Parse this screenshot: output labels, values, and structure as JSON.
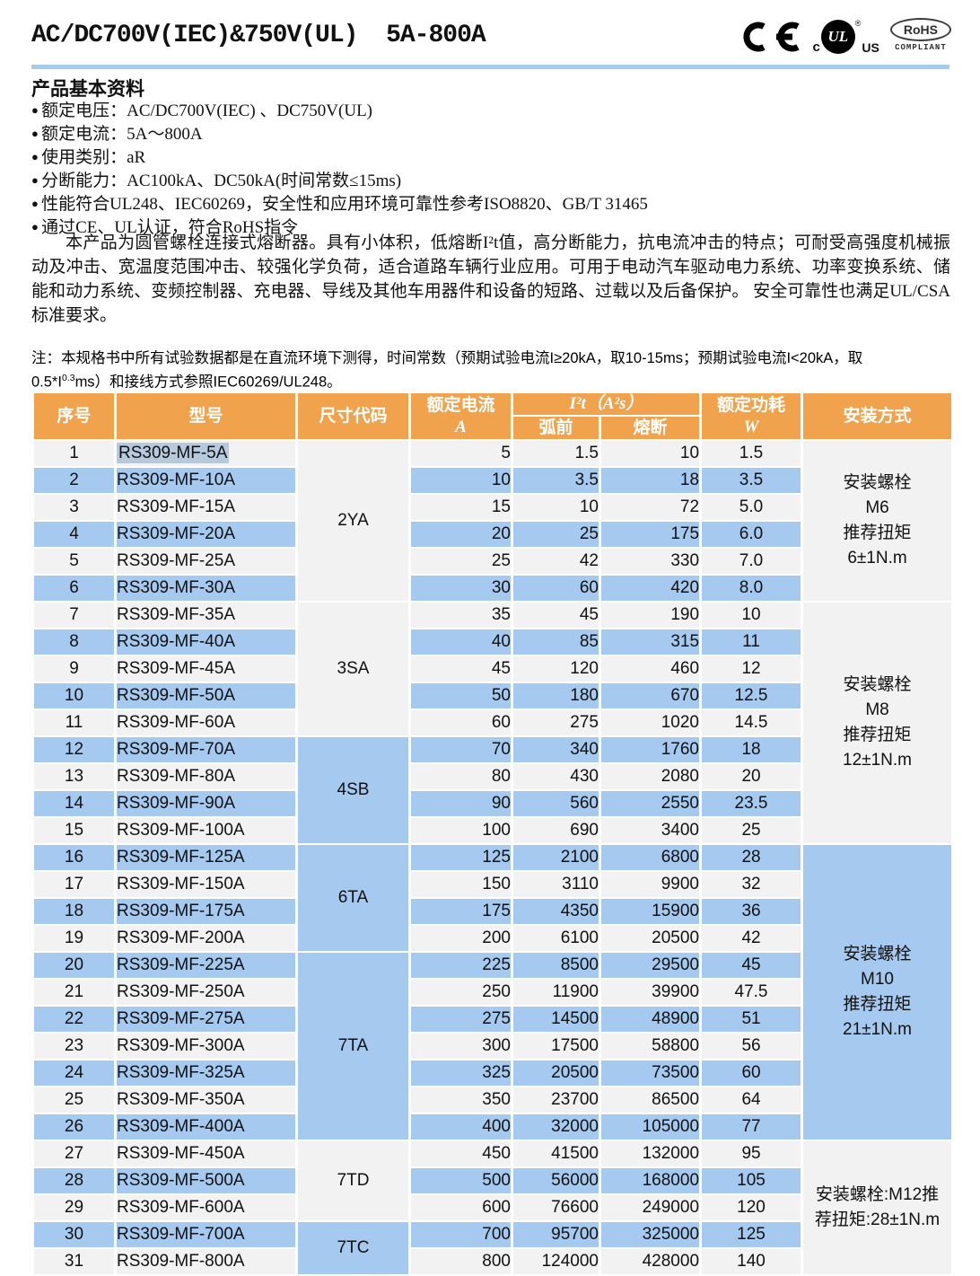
{
  "colors": {
    "header_orange": "#f0a24c",
    "row_blue": "#a6c9ef",
    "row_gray": "#f2f2f2",
    "divider_blue": "#a9cbea",
    "selection_blue": "#b7c9dd",
    "header_text": "#ffffff"
  },
  "header": {
    "title": "AC/DC700V(IEC)&750V(UL)  5A-800A"
  },
  "logos": {
    "ul_c": "c",
    "ul_text": "UL",
    "ul_reg": "®",
    "ul_us": "US",
    "rohs": "RoHS",
    "rohs_compliant": "COMPLIANT"
  },
  "basic_info": {
    "heading": "产品基本资料",
    "bullets": [
      "额定电压：AC/DC700V(IEC) 、DC750V(UL)",
      "额定电流：5A～800A",
      "使用类别：aR",
      "分断能力：AC100kA、DC50kA(时间常数≤15ms)",
      "性能符合UL248、IEC60269，安全性和应用环境可靠性参考ISO8820、GB/T 31465",
      "通过CE、UL认证，符合RoHS指令"
    ],
    "paragraph": "本产品为圆管螺栓连接式熔断器。具有小体积，低熔断I²t值，高分断能力，抗电流冲击的特点；可耐受高强度机械振动及冲击、宽温度范围冲击、较强化学负荷，适合道路车辆行业应用。可用于电动汽车驱动电力系统、功率变换系统、储能和动力系统、变频控制器、充电器、导线及其他车用器件和设备的短路、过载以及后备保护。 安全可靠性也满足UL/CSA标准要求。"
  },
  "note": {
    "line1": "注：本规格书中所有试验数据都是在直流环境下测得，时间常数（预期试验电流I≥20kA，取10-15ms；预期试验电流I<20kA，取",
    "line2_prefix": "0.5*I",
    "line2_sup": "0.3",
    "line2_suffix": "ms）和接线方式参照IEC60269/UL248。"
  },
  "table": {
    "headers": {
      "seq": "序号",
      "model": "型号",
      "size_code": "尺寸代码",
      "rated_current_l1": "额定电流",
      "rated_current_l2": "A",
      "i2t": "I²t（A²s）",
      "pre_arc": "弧前",
      "melt": "熔断",
      "power_l1": "额定功耗",
      "power_l2": "W",
      "mounting": "安装方式"
    },
    "highlight_row": 1,
    "rows": [
      {
        "seq": 1,
        "model": "RS309-MF-5A",
        "current": "5",
        "pre_arc": "1.5",
        "melt": "10",
        "power": "1.5"
      },
      {
        "seq": 2,
        "model": "RS309-MF-10A",
        "current": "10",
        "pre_arc": "3.5",
        "melt": "18",
        "power": "3.5"
      },
      {
        "seq": 3,
        "model": "RS309-MF-15A",
        "current": "15",
        "pre_arc": "10",
        "melt": "72",
        "power": "5.0"
      },
      {
        "seq": 4,
        "model": "RS309-MF-20A",
        "current": "20",
        "pre_arc": "25",
        "melt": "175",
        "power": "6.0"
      },
      {
        "seq": 5,
        "model": "RS309-MF-25A",
        "current": "25",
        "pre_arc": "42",
        "melt": "330",
        "power": "7.0"
      },
      {
        "seq": 6,
        "model": "RS309-MF-30A",
        "current": "30",
        "pre_arc": "60",
        "melt": "420",
        "power": "8.0"
      },
      {
        "seq": 7,
        "model": "RS309-MF-35A",
        "current": "35",
        "pre_arc": "45",
        "melt": "190",
        "power": "10"
      },
      {
        "seq": 8,
        "model": "RS309-MF-40A",
        "current": "40",
        "pre_arc": "85",
        "melt": "315",
        "power": "11"
      },
      {
        "seq": 9,
        "model": "RS309-MF-45A",
        "current": "45",
        "pre_arc": "120",
        "melt": "460",
        "power": "12"
      },
      {
        "seq": 10,
        "model": "RS309-MF-50A",
        "current": "50",
        "pre_arc": "180",
        "melt": "670",
        "power": "12.5"
      },
      {
        "seq": 11,
        "model": "RS309-MF-60A",
        "current": "60",
        "pre_arc": "275",
        "melt": "1020",
        "power": "14.5"
      },
      {
        "seq": 12,
        "model": "RS309-MF-70A",
        "current": "70",
        "pre_arc": "340",
        "melt": "1760",
        "power": "18"
      },
      {
        "seq": 13,
        "model": "RS309-MF-80A",
        "current": "80",
        "pre_arc": "430",
        "melt": "2080",
        "power": "20"
      },
      {
        "seq": 14,
        "model": "RS309-MF-90A",
        "current": "90",
        "pre_arc": "560",
        "melt": "2550",
        "power": "23.5"
      },
      {
        "seq": 15,
        "model": "RS309-MF-100A",
        "current": "100",
        "pre_arc": "690",
        "melt": "3400",
        "power": "25"
      },
      {
        "seq": 16,
        "model": "RS309-MF-125A",
        "current": "125",
        "pre_arc": "2100",
        "melt": "6800",
        "power": "28"
      },
      {
        "seq": 17,
        "model": "RS309-MF-150A",
        "current": "150",
        "pre_arc": "3110",
        "melt": "9900",
        "power": "32"
      },
      {
        "seq": 18,
        "model": "RS309-MF-175A",
        "current": "175",
        "pre_arc": "4350",
        "melt": "15900",
        "power": "36"
      },
      {
        "seq": 19,
        "model": "RS309-MF-200A",
        "current": "200",
        "pre_arc": "6100",
        "melt": "20500",
        "power": "42"
      },
      {
        "seq": 20,
        "model": "RS309-MF-225A",
        "current": "225",
        "pre_arc": "8500",
        "melt": "29500",
        "power": "45"
      },
      {
        "seq": 21,
        "model": "RS309-MF-250A",
        "current": "250",
        "pre_arc": "11900",
        "melt": "39900",
        "power": "47.5"
      },
      {
        "seq": 22,
        "model": "RS309-MF-275A",
        "current": "275",
        "pre_arc": "14500",
        "melt": "48900",
        "power": "51"
      },
      {
        "seq": 23,
        "model": "RS309-MF-300A",
        "current": "300",
        "pre_arc": "17500",
        "melt": "58800",
        "power": "56"
      },
      {
        "seq": 24,
        "model": "RS309-MF-325A",
        "current": "325",
        "pre_arc": "20500",
        "melt": "73500",
        "power": "60"
      },
      {
        "seq": 25,
        "model": "RS309-MF-350A",
        "current": "350",
        "pre_arc": "23700",
        "melt": "86500",
        "power": "64"
      },
      {
        "seq": 26,
        "model": "RS309-MF-400A",
        "current": "400",
        "pre_arc": "32000",
        "melt": "105000",
        "power": "77"
      },
      {
        "seq": 27,
        "model": "RS309-MF-450A",
        "current": "450",
        "pre_arc": "41500",
        "melt": "132000",
        "power": "95"
      },
      {
        "seq": 28,
        "model": "RS309-MF-500A",
        "current": "500",
        "pre_arc": "56000",
        "melt": "168000",
        "power": "105"
      },
      {
        "seq": 29,
        "model": "RS309-MF-600A",
        "current": "600",
        "pre_arc": "76600",
        "melt": "249000",
        "power": "120"
      },
      {
        "seq": 30,
        "model": "RS309-MF-700A",
        "current": "700",
        "pre_arc": "95700",
        "melt": "325000",
        "power": "125"
      },
      {
        "seq": 31,
        "model": "RS309-MF-800A",
        "current": "800",
        "pre_arc": "124000",
        "melt": "428000",
        "power": "140"
      }
    ],
    "size_groups": [
      {
        "code": "2YA",
        "from": 1,
        "to": 6
      },
      {
        "code": "3SA",
        "from": 7,
        "to": 11
      },
      {
        "code": "4SB",
        "from": 12,
        "to": 15
      },
      {
        "code": "6TA",
        "from": 16,
        "to": 19
      },
      {
        "code": "7TA",
        "from": 20,
        "to": 26
      },
      {
        "code": "7TD",
        "from": 27,
        "to": 29
      },
      {
        "code": "7TC",
        "from": 30,
        "to": 31
      }
    ],
    "mount_groups": [
      {
        "from": 1,
        "to": 6,
        "lines": [
          "安装螺栓",
          "M6",
          "推荐扭矩",
          "6±1N.m"
        ]
      },
      {
        "from": 7,
        "to": 15,
        "lines": [
          "安装螺栓",
          "M8",
          "推荐扭矩",
          "12±1N.m"
        ]
      },
      {
        "from": 16,
        "to": 26,
        "lines": [
          "安装螺栓",
          "M10",
          "推荐扭矩",
          "21±1N.m"
        ]
      },
      {
        "from": 27,
        "to": 31,
        "lines": [
          "安装螺栓:M12推",
          "荐扭矩:28±1N.m"
        ]
      }
    ]
  }
}
